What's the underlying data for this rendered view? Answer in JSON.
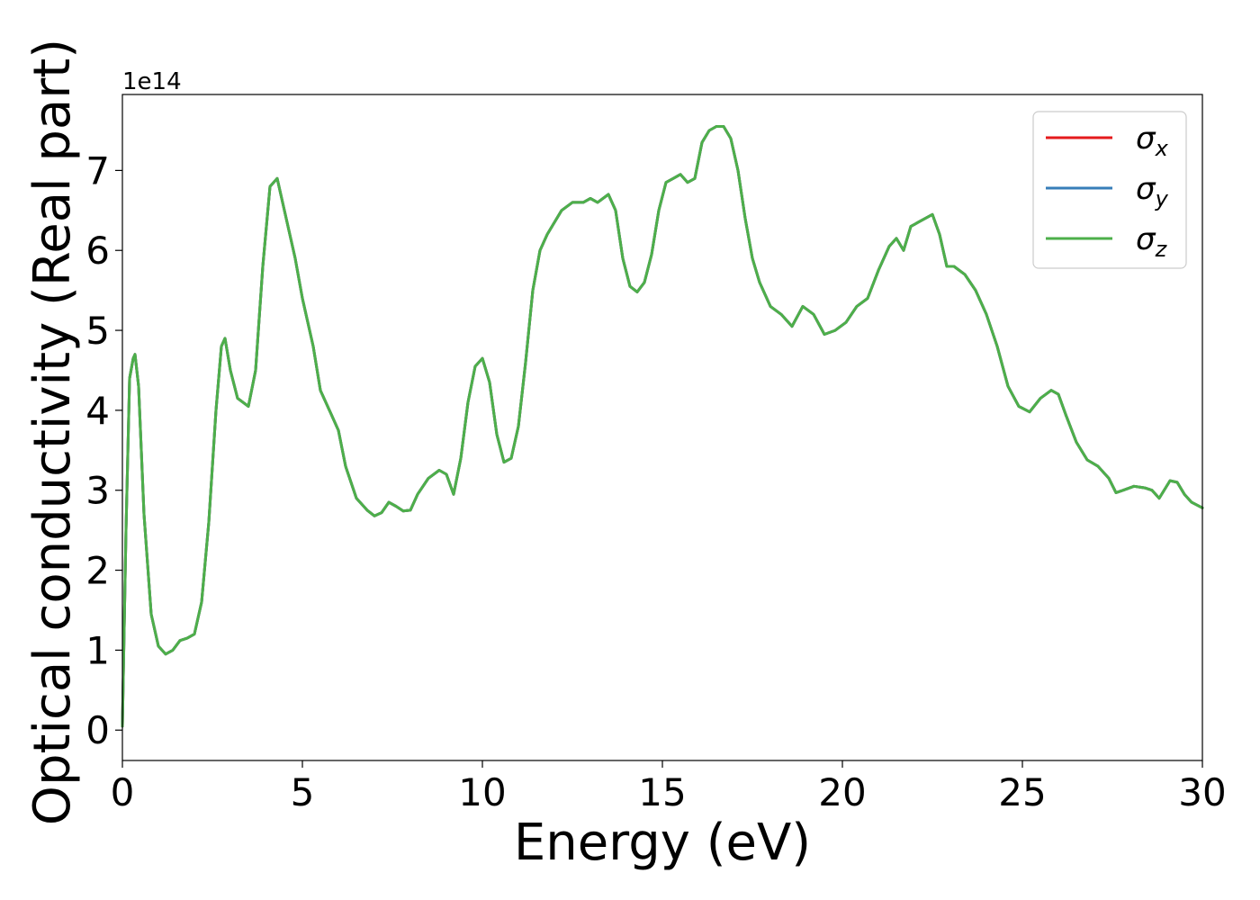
{
  "chart_data": {
    "type": "line",
    "title": "",
    "xlabel": "Energy (eV)",
    "ylabel": "Optical conductivity (Real part)",
    "y_offset_text": "1e14",
    "y_scale": 100000000000000.0,
    "xlim": [
      0,
      30
    ],
    "ylim": [
      -0.38,
      7.95
    ],
    "x_ticks": [
      0,
      5,
      10,
      15,
      20,
      25,
      30
    ],
    "x_tick_labels": [
      "0",
      "5",
      "10",
      "15",
      "20",
      "25",
      "30"
    ],
    "y_ticks": [
      0,
      1,
      2,
      3,
      4,
      5,
      6,
      7
    ],
    "y_tick_labels": [
      "0",
      "1",
      "2",
      "3",
      "4",
      "5",
      "6",
      "7"
    ],
    "grid": false,
    "legend_position": "top-right",
    "x": [
      0,
      0.1,
      0.2,
      0.3,
      0.35,
      0.45,
      0.6,
      0.8,
      1.0,
      1.2,
      1.4,
      1.6,
      1.8,
      2.0,
      2.2,
      2.4,
      2.6,
      2.75,
      2.85,
      3.0,
      3.2,
      3.5,
      3.7,
      3.9,
      4.1,
      4.3,
      4.5,
      4.8,
      5.0,
      5.3,
      5.5,
      5.8,
      6.0,
      6.2,
      6.5,
      6.8,
      7.0,
      7.2,
      7.4,
      7.6,
      7.8,
      8.0,
      8.2,
      8.5,
      8.8,
      9.0,
      9.2,
      9.4,
      9.6,
      9.8,
      10.0,
      10.2,
      10.4,
      10.6,
      10.8,
      11.0,
      11.2,
      11.4,
      11.6,
      11.8,
      12.0,
      12.2,
      12.5,
      12.8,
      13.0,
      13.2,
      13.5,
      13.7,
      13.9,
      14.1,
      14.3,
      14.5,
      14.7,
      14.9,
      15.1,
      15.3,
      15.5,
      15.7,
      15.9,
      16.1,
      16.3,
      16.5,
      16.7,
      16.9,
      17.1,
      17.3,
      17.5,
      17.7,
      18.0,
      18.3,
      18.6,
      18.9,
      19.2,
      19.5,
      19.8,
      20.1,
      20.4,
      20.7,
      21.0,
      21.3,
      21.5,
      21.7,
      21.9,
      22.1,
      22.3,
      22.5,
      22.7,
      22.9,
      23.1,
      23.4,
      23.7,
      24.0,
      24.3,
      24.6,
      24.9,
      25.2,
      25.5,
      25.8,
      26.0,
      26.2,
      26.5,
      26.8,
      27.1,
      27.4,
      27.6,
      27.8,
      28.1,
      28.4,
      28.6,
      28.8,
      29.1,
      29.3,
      29.5,
      29.7,
      30.0
    ],
    "series": [
      {
        "name": "σ_x",
        "label": "σ",
        "sub": "x",
        "color": "#e41a1c",
        "values": [
          0.05,
          2.5,
          4.4,
          4.65,
          4.7,
          4.3,
          2.7,
          1.45,
          1.05,
          0.95,
          1.0,
          1.12,
          1.15,
          1.2,
          1.6,
          2.6,
          4.0,
          4.8,
          4.9,
          4.5,
          4.15,
          4.05,
          4.5,
          5.8,
          6.8,
          6.9,
          6.5,
          5.9,
          5.4,
          4.8,
          4.25,
          3.95,
          3.75,
          3.3,
          2.9,
          2.75,
          2.68,
          2.72,
          2.85,
          2.8,
          2.74,
          2.75,
          2.95,
          3.15,
          3.25,
          3.2,
          2.95,
          3.4,
          4.1,
          4.55,
          4.65,
          4.35,
          3.7,
          3.35,
          3.4,
          3.8,
          4.6,
          5.5,
          6.0,
          6.2,
          6.35,
          6.5,
          6.6,
          6.6,
          6.65,
          6.6,
          6.7,
          6.5,
          5.9,
          5.55,
          5.48,
          5.6,
          5.95,
          6.5,
          6.85,
          6.9,
          6.95,
          6.85,
          6.9,
          7.35,
          7.5,
          7.55,
          7.55,
          7.4,
          7.0,
          6.4,
          5.9,
          5.6,
          5.3,
          5.2,
          5.05,
          5.3,
          5.2,
          4.95,
          5.0,
          5.1,
          5.3,
          5.4,
          5.75,
          6.05,
          6.15,
          6.0,
          6.3,
          6.35,
          6.4,
          6.45,
          6.2,
          5.8,
          5.8,
          5.7,
          5.5,
          5.2,
          4.8,
          4.3,
          4.05,
          3.98,
          4.15,
          4.25,
          4.2,
          3.95,
          3.6,
          3.38,
          3.3,
          3.15,
          2.97,
          3.0,
          3.05,
          3.03,
          3.0,
          2.9,
          3.12,
          3.1,
          2.95,
          2.85,
          2.78
        ]
      },
      {
        "name": "σ_y",
        "label": "σ",
        "sub": "y",
        "color": "#377eb8",
        "values": [
          0.05,
          2.5,
          4.4,
          4.65,
          4.7,
          4.3,
          2.7,
          1.45,
          1.05,
          0.95,
          1.0,
          1.12,
          1.15,
          1.2,
          1.6,
          2.6,
          4.0,
          4.8,
          4.9,
          4.5,
          4.15,
          4.05,
          4.5,
          5.8,
          6.8,
          6.9,
          6.5,
          5.9,
          5.4,
          4.8,
          4.25,
          3.95,
          3.75,
          3.3,
          2.9,
          2.75,
          2.68,
          2.72,
          2.85,
          2.8,
          2.74,
          2.75,
          2.95,
          3.15,
          3.25,
          3.2,
          2.95,
          3.4,
          4.1,
          4.55,
          4.65,
          4.35,
          3.7,
          3.35,
          3.4,
          3.8,
          4.6,
          5.5,
          6.0,
          6.2,
          6.35,
          6.5,
          6.6,
          6.6,
          6.65,
          6.6,
          6.7,
          6.5,
          5.9,
          5.55,
          5.48,
          5.6,
          5.95,
          6.5,
          6.85,
          6.9,
          6.95,
          6.85,
          6.9,
          7.35,
          7.5,
          7.55,
          7.55,
          7.4,
          7.0,
          6.4,
          5.9,
          5.6,
          5.3,
          5.2,
          5.05,
          5.3,
          5.2,
          4.95,
          5.0,
          5.1,
          5.3,
          5.4,
          5.75,
          6.05,
          6.15,
          6.0,
          6.3,
          6.35,
          6.4,
          6.45,
          6.2,
          5.8,
          5.8,
          5.7,
          5.5,
          5.2,
          4.8,
          4.3,
          4.05,
          3.98,
          4.15,
          4.25,
          4.2,
          3.95,
          3.6,
          3.38,
          3.3,
          3.15,
          2.97,
          3.0,
          3.05,
          3.03,
          3.0,
          2.9,
          3.12,
          3.1,
          2.95,
          2.85,
          2.78
        ]
      },
      {
        "name": "σ_z",
        "label": "σ",
        "sub": "z",
        "color": "#4daf4a",
        "values": [
          0.05,
          2.5,
          4.4,
          4.65,
          4.7,
          4.3,
          2.7,
          1.45,
          1.05,
          0.95,
          1.0,
          1.12,
          1.15,
          1.2,
          1.6,
          2.6,
          4.0,
          4.8,
          4.9,
          4.5,
          4.15,
          4.05,
          4.5,
          5.8,
          6.8,
          6.9,
          6.5,
          5.9,
          5.4,
          4.8,
          4.25,
          3.95,
          3.75,
          3.3,
          2.9,
          2.75,
          2.68,
          2.72,
          2.85,
          2.8,
          2.74,
          2.75,
          2.95,
          3.15,
          3.25,
          3.2,
          2.95,
          3.4,
          4.1,
          4.55,
          4.65,
          4.35,
          3.7,
          3.35,
          3.4,
          3.8,
          4.6,
          5.5,
          6.0,
          6.2,
          6.35,
          6.5,
          6.6,
          6.6,
          6.65,
          6.6,
          6.7,
          6.5,
          5.9,
          5.55,
          5.48,
          5.6,
          5.95,
          6.5,
          6.85,
          6.9,
          6.95,
          6.85,
          6.9,
          7.35,
          7.5,
          7.55,
          7.55,
          7.4,
          7.0,
          6.4,
          5.9,
          5.6,
          5.3,
          5.2,
          5.05,
          5.3,
          5.2,
          4.95,
          5.0,
          5.1,
          5.3,
          5.4,
          5.75,
          6.05,
          6.15,
          6.0,
          6.3,
          6.35,
          6.4,
          6.45,
          6.2,
          5.8,
          5.8,
          5.7,
          5.5,
          5.2,
          4.8,
          4.3,
          4.05,
          3.98,
          4.15,
          4.25,
          4.2,
          3.95,
          3.6,
          3.38,
          3.3,
          3.15,
          2.97,
          3.0,
          3.05,
          3.03,
          3.0,
          2.9,
          3.12,
          3.1,
          2.95,
          2.85,
          2.78
        ]
      }
    ]
  }
}
